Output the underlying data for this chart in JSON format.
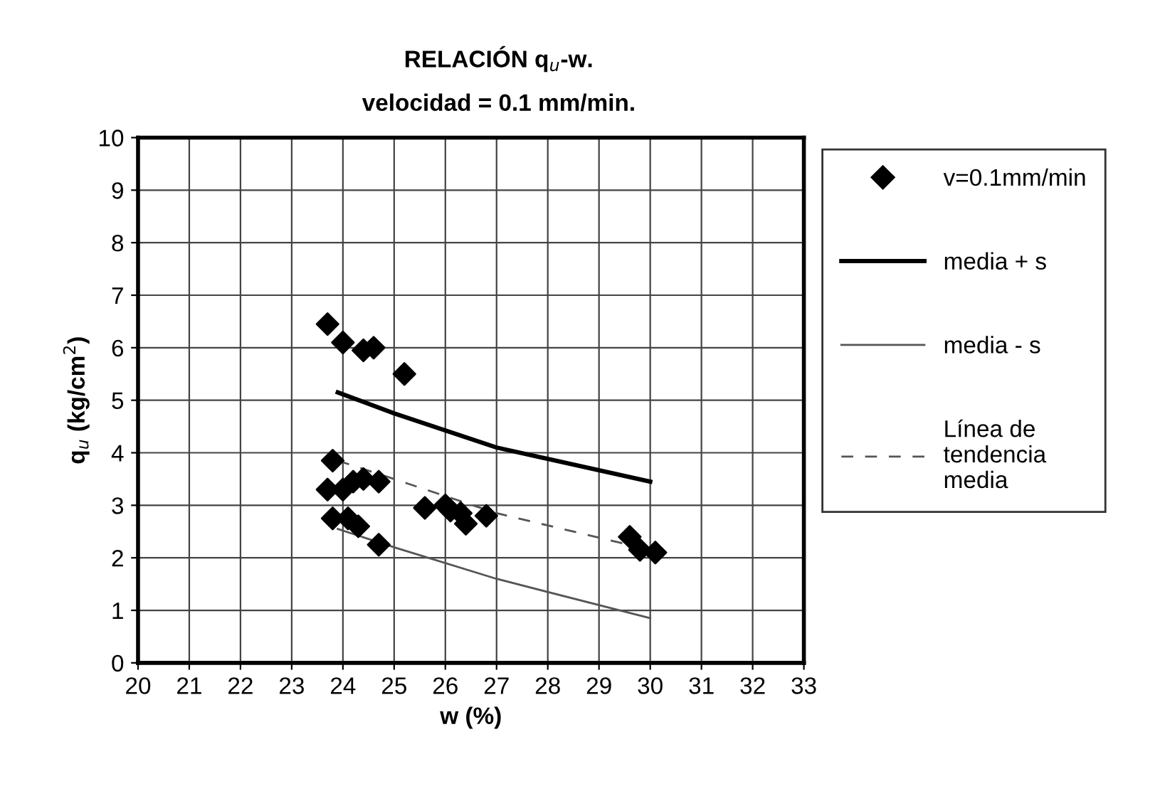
{
  "chart_data": {
    "type": "scatter",
    "title": "RELACIÓN q$_{u}$-w.",
    "subtitle": "velocidad = 0.1 mm/min.",
    "xlabel": "w (%)",
    "ylabel": "q$_{u}$ (kg/cm$^{2}$)",
    "xlim": [
      20,
      33
    ],
    "xticks": [
      20,
      21,
      22,
      23,
      24,
      25,
      26,
      27,
      28,
      29,
      30,
      31,
      32,
      33
    ],
    "ylim": [
      0,
      10
    ],
    "yticks": [
      0,
      1,
      2,
      3,
      4,
      5,
      6,
      7,
      8,
      9,
      10
    ],
    "grid": true,
    "legend": "right",
    "series": [
      {
        "name": "v=0.1mm/min",
        "marker": "diamond",
        "color": "#000000",
        "x": [
          23.7,
          24.0,
          24.4,
          24.6,
          25.2,
          23.8,
          23.7,
          24.0,
          24.2,
          24.4,
          24.7,
          23.8,
          24.1,
          24.3,
          24.7,
          25.6,
          26.0,
          26.1,
          26.3,
          26.4,
          26.8,
          29.6,
          29.8,
          30.1
        ],
        "values": [
          6.45,
          6.1,
          5.95,
          6.0,
          5.5,
          3.85,
          3.3,
          3.3,
          3.45,
          3.5,
          3.45,
          2.75,
          2.75,
          2.6,
          2.25,
          2.95,
          3.0,
          2.9,
          2.85,
          2.65,
          2.8,
          2.4,
          2.15,
          2.1
        ]
      },
      {
        "name": "media + s",
        "type": "line",
        "line_style": "solid",
        "color": "#000000",
        "x": [
          23.9,
          25,
          27,
          30
        ],
        "values": [
          5.15,
          4.75,
          4.1,
          3.45
        ]
      },
      {
        "name": "media - s",
        "type": "line",
        "line_style": "solid",
        "color": "#555555",
        "x": [
          23.9,
          25,
          27,
          30
        ],
        "values": [
          2.55,
          2.2,
          1.6,
          0.85
        ]
      },
      {
        "name": "Línea de\ntendencia\nmedia",
        "type": "line",
        "line_style": "dashed",
        "color": "#555555",
        "x": [
          23.9,
          25,
          27,
          30
        ],
        "values": [
          3.85,
          3.5,
          2.85,
          2.15
        ]
      }
    ]
  }
}
